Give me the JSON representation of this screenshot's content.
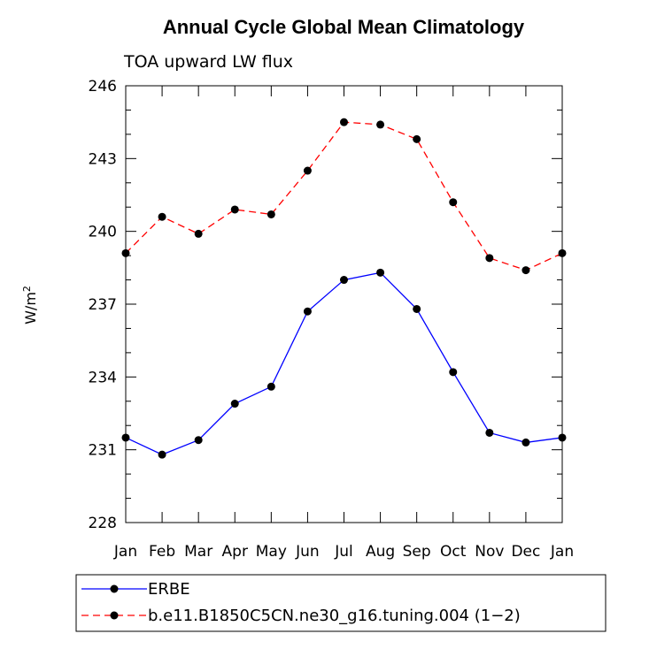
{
  "chart_data": {
    "type": "line",
    "title": "Annual Cycle Global Mean Climatology",
    "subtitle": "TOA upward LW flux",
    "ylabel": "W/m",
    "ylabel_superscript": "2",
    "xlabel": "",
    "categories": [
      "Jan",
      "Feb",
      "Mar",
      "Apr",
      "May",
      "Jun",
      "Jul",
      "Aug",
      "Sep",
      "Oct",
      "Nov",
      "Dec",
      "Jan"
    ],
    "ylim": [
      228,
      246
    ],
    "yticks": [
      228,
      231,
      234,
      237,
      240,
      243,
      246
    ],
    "grid": false,
    "legend_position": "bottom",
    "series": [
      {
        "name": "ERBE",
        "color": "#0000ff",
        "line_style": "solid",
        "marker": "filled-circle",
        "values": [
          231.5,
          230.8,
          231.4,
          232.9,
          233.6,
          236.7,
          238.0,
          238.3,
          236.8,
          234.2,
          231.7,
          231.3,
          231.5
        ]
      },
      {
        "name": "b.e11.B1850C5CN.ne30_g16.tuning.004 (1−2)",
        "color": "#ff0000",
        "line_style": "dashed",
        "marker": "filled-circle",
        "values": [
          239.1,
          240.6,
          239.9,
          240.9,
          240.7,
          242.5,
          244.5,
          244.4,
          243.8,
          241.2,
          238.9,
          238.4,
          239.1
        ]
      }
    ]
  }
}
